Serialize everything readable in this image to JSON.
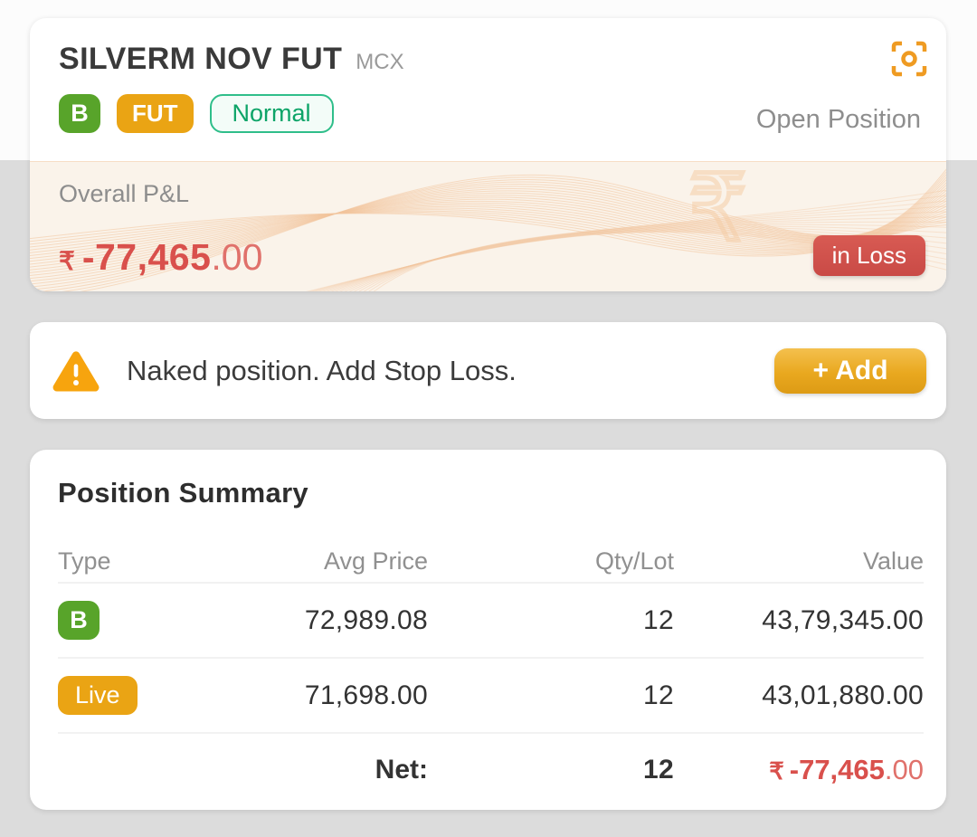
{
  "header": {
    "title": "SILVERM NOV FUT",
    "exchange": "MCX",
    "side_badge": "B",
    "instrument_badge": "FUT",
    "product_badge": "Normal",
    "position_type": "Open Position"
  },
  "pnl": {
    "label": "Overall P&L",
    "currency": "₹",
    "amount": "-77,465",
    "decimals": ".00",
    "status_badge": "in Loss"
  },
  "alert": {
    "message": "Naked position. Add Stop Loss.",
    "add_button": "+ Add"
  },
  "summary": {
    "title": "Position Summary",
    "columns": {
      "type": "Type",
      "avg_price": "Avg Price",
      "qty": "Qty/Lot",
      "value": "Value"
    },
    "rows": [
      {
        "badge": "B",
        "avg_price": "72,989.08",
        "qty": "12",
        "value": "43,79,345.00"
      },
      {
        "badge": "Live",
        "avg_price": "71,698.00",
        "qty": "12",
        "value": "43,01,880.00"
      }
    ],
    "net": {
      "label": "Net:",
      "qty": "12",
      "currency": "₹",
      "amount": "-77,465",
      "decimals": ".00"
    }
  },
  "colors": {
    "buy_green": "#58a42a",
    "amber": "#eaa414",
    "normal_green": "#0da468",
    "loss_red": "#d9504c",
    "accent_orange": "#ef9b22",
    "page_bg": "#dcdcdc"
  }
}
